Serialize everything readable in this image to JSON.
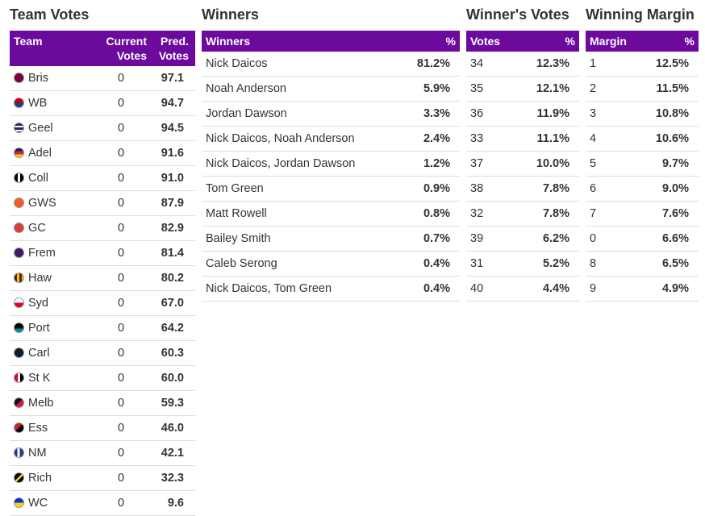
{
  "team_votes": {
    "title": "Team Votes",
    "columns": [
      "Team",
      "Current Votes",
      "Pred. Votes"
    ],
    "rows": [
      [
        "Bris",
        "0",
        "97.1"
      ],
      [
        "WB",
        "0",
        "94.7"
      ],
      [
        "Geel",
        "0",
        "94.5"
      ],
      [
        "Adel",
        "0",
        "91.6"
      ],
      [
        "Coll",
        "0",
        "91.0"
      ],
      [
        "GWS",
        "0",
        "87.9"
      ],
      [
        "GC",
        "0",
        "82.9"
      ],
      [
        "Frem",
        "0",
        "81.4"
      ],
      [
        "Haw",
        "0",
        "80.2"
      ],
      [
        "Syd",
        "0",
        "67.0"
      ],
      [
        "Port",
        "0",
        "64.2"
      ],
      [
        "Carl",
        "0",
        "60.3"
      ],
      [
        "St K",
        "0",
        "60.0"
      ],
      [
        "Melb",
        "0",
        "59.3"
      ],
      [
        "Ess",
        "0",
        "46.0"
      ],
      [
        "NM",
        "0",
        "42.1"
      ],
      [
        "Rich",
        "0",
        "32.3"
      ],
      [
        "WC",
        "0",
        "9.6"
      ]
    ]
  },
  "winners": {
    "title": "Winners",
    "columns": [
      "Winners",
      "%"
    ],
    "rows": [
      [
        "Nick Daicos",
        "81.2%"
      ],
      [
        "Noah Anderson",
        "5.9%"
      ],
      [
        "Jordan Dawson",
        "3.3%"
      ],
      [
        "Nick Daicos, Noah Anderson",
        "2.4%"
      ],
      [
        "Nick Daicos, Jordan Dawson",
        "1.2%"
      ],
      [
        "Tom Green",
        "0.9%"
      ],
      [
        "Matt Rowell",
        "0.8%"
      ],
      [
        "Bailey Smith",
        "0.7%"
      ],
      [
        "Caleb Serong",
        "0.4%"
      ],
      [
        "Nick Daicos, Tom Green",
        "0.4%"
      ]
    ]
  },
  "winners_votes": {
    "title": "Winner's Votes",
    "columns": [
      "Votes",
      "%"
    ],
    "rows": [
      [
        "34",
        "12.3%"
      ],
      [
        "35",
        "12.1%"
      ],
      [
        "36",
        "11.9%"
      ],
      [
        "33",
        "11.1%"
      ],
      [
        "37",
        "10.0%"
      ],
      [
        "38",
        "7.8%"
      ],
      [
        "32",
        "7.8%"
      ],
      [
        "39",
        "6.2%"
      ],
      [
        "31",
        "5.2%"
      ],
      [
        "40",
        "4.4%"
      ]
    ]
  },
  "winning_margin": {
    "title": "Winning Margin",
    "columns": [
      "Margin",
      "%"
    ],
    "rows": [
      [
        "1",
        "12.5%"
      ],
      [
        "2",
        "11.5%"
      ],
      [
        "3",
        "10.8%"
      ],
      [
        "4",
        "10.6%"
      ],
      [
        "5",
        "9.7%"
      ],
      [
        "6",
        "9.0%"
      ],
      [
        "7",
        "7.6%"
      ],
      [
        "0",
        "6.6%"
      ],
      [
        "8",
        "6.5%"
      ],
      [
        "9",
        "4.9%"
      ]
    ]
  }
}
